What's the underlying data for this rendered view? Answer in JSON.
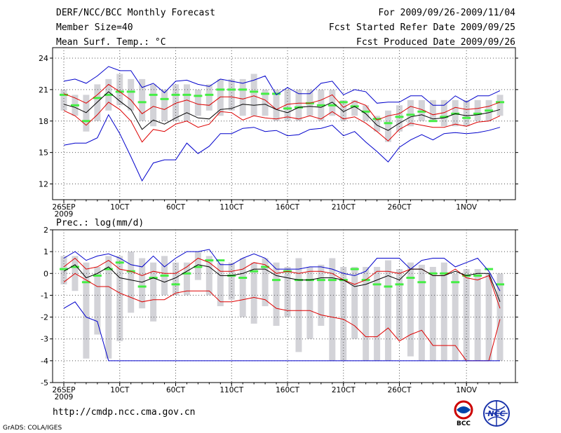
{
  "header": {
    "title": "DERF/NCC/BCC Monthly Forecast",
    "member_size": "Member Size=40",
    "variable": "Mean Surf. Temp.: °C",
    "period": "For 2009/09/26-2009/11/04",
    "start_date": "Fcst Started Refer Date 2009/09/25",
    "produced_date": "Fcst Produced Date 2009/09/26"
  },
  "footer": {
    "url": "http://cmdp.ncc.cma.gov.cn",
    "grads": "GrADS: COLA/IGES",
    "logo_bcc": "BCC",
    "logo_ncc": "NCC"
  },
  "colors": {
    "box": "#d3d3d8",
    "median": "#44ee44",
    "mean": "#000000",
    "spread": "#dd0000",
    "extreme": "#0000cc",
    "grid": "#555555"
  },
  "chart_data": [
    {
      "type": "line",
      "title": "Mean Surf. Temp.: °C",
      "xlabel": "",
      "ylabel": "°C",
      "x_ticks": [
        "26SEP",
        "10CT",
        "60CT",
        "110CT",
        "160CT",
        "210CT",
        "260CT",
        "1NOV"
      ],
      "x_year_label": "2009",
      "days": 40,
      "ylim": [
        10.5,
        25
      ],
      "y_ticks": [
        12,
        15,
        18,
        21,
        24
      ],
      "grid": true,
      "box_low": [
        19.0,
        18.5,
        17.0,
        18.0,
        19.0,
        19.5,
        19.0,
        18.0,
        17.5,
        18.0,
        18.0,
        18.0,
        18.5,
        19.0,
        18.5,
        19.0,
        18.5,
        18.5,
        18.5,
        18.0,
        18.0,
        18.0,
        18.5,
        18.0,
        18.5,
        18.0,
        18.5,
        18.0,
        17.0,
        16.0,
        17.0,
        17.5,
        18.0,
        18.0,
        17.5,
        17.5,
        17.5,
        18.0,
        18.0,
        18.5
      ],
      "box_high": [
        21.0,
        20.5,
        20.5,
        21.5,
        22.0,
        22.5,
        22.0,
        22.0,
        21.5,
        21.0,
        21.5,
        21.5,
        21.0,
        21.5,
        22.0,
        22.0,
        22.0,
        22.5,
        21.0,
        21.0,
        21.0,
        21.0,
        21.0,
        21.0,
        21.0,
        20.0,
        20.0,
        19.5,
        18.5,
        19.0,
        19.5,
        20.0,
        20.0,
        20.0,
        20.0,
        20.0,
        20.0,
        20.0,
        20.0,
        20.5
      ],
      "median": [
        20.5,
        19.5,
        18.0,
        20.2,
        20.5,
        20.8,
        20.8,
        19.8,
        20.5,
        20.1,
        20.5,
        20.5,
        20.4,
        20.5,
        21.0,
        21.0,
        21.0,
        20.8,
        20.6,
        20.6,
        19.2,
        19.3,
        19.7,
        19.5,
        19.5,
        19.8,
        19.4,
        18.9,
        18.2,
        17.8,
        18.4,
        18.6,
        18.9,
        18.0,
        18.4,
        18.7,
        18.3,
        18.7,
        19.0,
        19.8
      ],
      "series": [
        {
          "name": "max",
          "color": "#0000cc",
          "values": [
            21.8,
            22.0,
            21.6,
            22.3,
            23.2,
            22.8,
            22.8,
            21.2,
            21.6,
            20.7,
            21.8,
            21.9,
            21.5,
            21.3,
            22.0,
            21.8,
            21.6,
            21.9,
            22.3,
            20.5,
            21.2,
            20.6,
            20.6,
            21.6,
            21.8,
            20.5,
            21.0,
            20.8,
            19.7,
            19.8,
            19.8,
            20.4,
            20.4,
            19.5,
            19.5,
            20.4,
            19.8,
            20.4,
            20.4,
            20.9
          ]
        },
        {
          "name": "upper",
          "color": "#dd0000",
          "values": [
            20.6,
            20.2,
            19.7,
            20.5,
            21.5,
            20.8,
            20.0,
            18.7,
            19.4,
            19.1,
            19.7,
            20.0,
            19.6,
            19.5,
            20.3,
            20.3,
            20.1,
            20.4,
            20.0,
            19.1,
            19.6,
            19.7,
            19.7,
            20.0,
            20.5,
            19.3,
            19.9,
            19.5,
            18.1,
            18.5,
            18.7,
            19.4,
            19.1,
            18.6,
            18.8,
            19.3,
            19.1,
            19.2,
            19.4,
            19.8
          ]
        },
        {
          "name": "mean",
          "color": "#000000",
          "values": [
            19.6,
            19.3,
            18.8,
            19.8,
            20.8,
            19.9,
            19.1,
            17.2,
            18.1,
            17.7,
            18.3,
            18.8,
            18.3,
            18.2,
            19.1,
            19.2,
            19.6,
            19.5,
            19.6,
            19.1,
            18.8,
            19.3,
            19.4,
            19.3,
            19.8,
            18.9,
            19.4,
            18.7,
            17.6,
            17.1,
            17.8,
            18.4,
            18.6,
            18.2,
            18.3,
            18.7,
            18.5,
            18.6,
            18.8,
            19.1
          ]
        },
        {
          "name": "lower",
          "color": "#dd0000",
          "values": [
            19.0,
            18.5,
            17.6,
            18.6,
            19.8,
            19.1,
            18.0,
            16.0,
            17.2,
            17.0,
            17.7,
            18.0,
            17.4,
            17.7,
            18.9,
            18.8,
            18.1,
            18.5,
            18.3,
            18.2,
            18.4,
            18.2,
            18.5,
            18.2,
            18.9,
            18.2,
            18.4,
            17.8,
            17.0,
            16.1,
            17.2,
            17.8,
            17.6,
            17.4,
            17.4,
            17.7,
            17.5,
            17.9,
            18.0,
            18.5
          ]
        },
        {
          "name": "min",
          "color": "#0000cc",
          "values": [
            15.7,
            15.9,
            15.9,
            16.4,
            18.6,
            16.8,
            14.6,
            12.3,
            14.0,
            14.3,
            14.3,
            15.9,
            14.9,
            15.6,
            16.8,
            16.8,
            17.3,
            17.4,
            17.0,
            17.1,
            16.6,
            16.7,
            17.2,
            17.3,
            17.6,
            16.6,
            17.0,
            16.0,
            15.1,
            14.1,
            15.5,
            16.2,
            16.7,
            16.2,
            16.8,
            16.9,
            16.8,
            16.9,
            17.1,
            17.4
          ]
        }
      ]
    },
    {
      "type": "line",
      "title": "Prec.: log(mm/d)",
      "xlabel": "",
      "ylabel": "log(mm/d)",
      "x_ticks": [
        "26SEP",
        "10CT",
        "60CT",
        "110CT",
        "160CT",
        "210CT",
        "260CT",
        "1NOV"
      ],
      "x_year_label": "2009",
      "days": 40,
      "ylim": [
        -5,
        2
      ],
      "y_ticks": [
        -5,
        -4,
        -3,
        -2,
        -1,
        0,
        1,
        2
      ],
      "grid": true,
      "box_low": [
        -0.5,
        -0.8,
        -3.9,
        -2.8,
        -3.9,
        -3.1,
        -1.8,
        -1.6,
        -2.2,
        -1.0,
        -1.0,
        -1.0,
        -0.3,
        -1.0,
        -1.5,
        -1.2,
        -2.0,
        -2.3,
        -1.5,
        -2.4,
        -2.0,
        -3.6,
        -3.0,
        -2.4,
        -4.0,
        -4.0,
        -3.0,
        -4.0,
        -4.0,
        -4.0,
        -3.0,
        -3.8,
        -4.0,
        -4.0,
        -4.0,
        -4.0,
        -4.0,
        -4.0,
        -4.0,
        -4.0
      ],
      "box_high": [
        0.8,
        0.8,
        0.5,
        0.3,
        0.8,
        0.8,
        1.0,
        0.7,
        0.5,
        0.8,
        0.5,
        0.5,
        1.0,
        0.8,
        0.5,
        0.5,
        0.7,
        0.5,
        0.7,
        0.5,
        0.3,
        0.7,
        0.3,
        0.4,
        0.7,
        0.3,
        0.3,
        0.3,
        0.3,
        0.6,
        0.2,
        0.5,
        0.4,
        0.3,
        0.5,
        0.0,
        0.2,
        0.2,
        0.0,
        0.0
      ],
      "median": [
        0.2,
        0.3,
        -0.4,
        -0.1,
        0.2,
        0.5,
        0.1,
        -0.6,
        -0.2,
        -0.1,
        -0.5,
        0.0,
        0.3,
        0.6,
        0.6,
        -0.1,
        -0.2,
        0.1,
        0.3,
        -0.3,
        0.1,
        -0.3,
        -0.3,
        -0.3,
        -0.3,
        -0.3,
        0.2,
        -0.3,
        -0.5,
        -0.6,
        -0.5,
        -0.2,
        -0.4,
        0.0,
        0.0,
        -0.4,
        -0.1,
        -0.1,
        0.2,
        -0.5
      ],
      "series": [
        {
          "name": "max",
          "color": "#0000cc",
          "values": [
            0.7,
            1.0,
            0.6,
            0.8,
            0.9,
            0.7,
            0.4,
            0.3,
            0.8,
            0.3,
            0.7,
            1.0,
            1.0,
            1.1,
            0.4,
            0.4,
            0.7,
            0.9,
            0.7,
            0.2,
            0.2,
            0.2,
            0.3,
            0.3,
            0.2,
            0.0,
            -0.1,
            0.1,
            0.7,
            0.7,
            0.7,
            0.2,
            0.6,
            0.7,
            0.7,
            0.3,
            0.5,
            0.7,
            0.1,
            -0.8
          ]
        },
        {
          "name": "upper",
          "color": "#dd0000",
          "values": [
            0.3,
            0.7,
            0.2,
            0.3,
            0.6,
            0.2,
            0.1,
            -0.1,
            0.1,
            0.0,
            0.0,
            0.3,
            0.7,
            0.5,
            0.1,
            0.1,
            0.2,
            0.5,
            0.4,
            0.0,
            0.1,
            0.0,
            0.1,
            0.1,
            0.0,
            -0.3,
            -0.5,
            -0.3,
            0.1,
            0.1,
            0.0,
            0.2,
            0.2,
            -0.1,
            -0.1,
            0.2,
            -0.2,
            -0.3,
            -0.1,
            -1.6
          ]
        },
        {
          "name": "mean",
          "color": "#000000",
          "values": [
            0.1,
            0.4,
            -0.2,
            0.0,
            0.3,
            -0.2,
            -0.3,
            -0.4,
            -0.2,
            -0.4,
            -0.2,
            0.1,
            0.4,
            0.3,
            -0.1,
            -0.1,
            0.0,
            0.2,
            0.2,
            -0.1,
            -0.2,
            -0.3,
            -0.3,
            -0.2,
            -0.2,
            -0.3,
            -0.6,
            -0.5,
            -0.3,
            -0.1,
            -0.3,
            0.2,
            0.2,
            -0.1,
            -0.1,
            0.1,
            -0.1,
            0.0,
            0.0,
            -1.3
          ]
        },
        {
          "name": "lower",
          "color": "#dd0000",
          "values": [
            -0.4,
            0.0,
            -0.3,
            -0.6,
            -0.6,
            -0.9,
            -1.1,
            -1.3,
            -1.2,
            -1.2,
            -0.9,
            -0.8,
            -0.8,
            -0.8,
            -1.3,
            -1.3,
            -1.2,
            -1.1,
            -1.2,
            -1.6,
            -1.7,
            -1.7,
            -1.7,
            -1.9,
            -2.0,
            -2.1,
            -2.4,
            -2.9,
            -2.9,
            -2.5,
            -3.1,
            -2.8,
            -2.6,
            -3.3,
            -3.3,
            -3.3,
            -4.0,
            -4.0,
            -4.0,
            -2.1
          ]
        },
        {
          "name": "min",
          "color": "#0000cc",
          "values": [
            -1.6,
            -1.3,
            -2.0,
            -2.2,
            -4.0,
            -4.0,
            -4.0,
            -4.0,
            -4.0,
            -4.0,
            -4.0,
            -4.0,
            -4.0,
            -4.0,
            -4.0,
            -4.0,
            -4.0,
            -4.0,
            -4.0,
            -4.0,
            -4.0,
            -4.0,
            -4.0,
            -4.0,
            -4.0,
            -4.0,
            -4.0,
            -4.0,
            -4.0,
            -4.0,
            -4.0,
            -4.0,
            -4.0,
            -4.0,
            -4.0,
            -4.0,
            -4.0,
            -4.0,
            -4.0,
            -4.0
          ]
        }
      ]
    }
  ]
}
